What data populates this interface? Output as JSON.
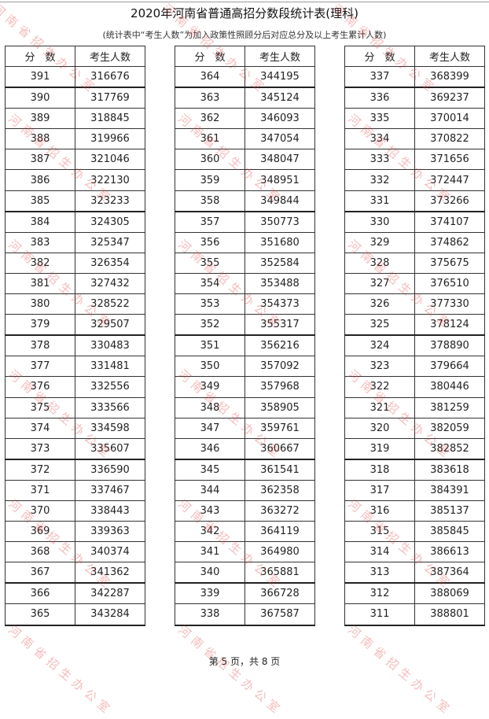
{
  "title": "2020年河南省普通高招分数段统计表(理科)",
  "subtitle": "(统计表中“考生人数”为加入政策性照顾分后对应总分及以上考生累计人数)",
  "headers": {
    "score": "分　数",
    "count": "考生人数"
  },
  "watermark": "河南省招生办公室",
  "footer": "第 5 页，共 8 页",
  "tables": [
    [
      [
        "391",
        "316676"
      ],
      [
        "390",
        "317769"
      ],
      [
        "389",
        "318845"
      ],
      [
        "388",
        "319966"
      ],
      [
        "387",
        "321046"
      ],
      [
        "386",
        "322130"
      ],
      [
        "385",
        "323233"
      ],
      [
        "384",
        "324305"
      ],
      [
        "383",
        "325347"
      ],
      [
        "382",
        "326354"
      ],
      [
        "381",
        "327432"
      ],
      [
        "380",
        "328522"
      ],
      [
        "379",
        "329507"
      ],
      [
        "378",
        "330483"
      ],
      [
        "377",
        "331481"
      ],
      [
        "376",
        "332556"
      ],
      [
        "375",
        "333566"
      ],
      [
        "374",
        "334598"
      ],
      [
        "373",
        "335607"
      ],
      [
        "372",
        "336590"
      ],
      [
        "371",
        "337467"
      ],
      [
        "370",
        "338443"
      ],
      [
        "369",
        "339363"
      ],
      [
        "368",
        "340374"
      ],
      [
        "367",
        "341362"
      ],
      [
        "366",
        "342287"
      ],
      [
        "365",
        "343284"
      ]
    ],
    [
      [
        "364",
        "344195"
      ],
      [
        "363",
        "345124"
      ],
      [
        "362",
        "346093"
      ],
      [
        "361",
        "347054"
      ],
      [
        "360",
        "348047"
      ],
      [
        "359",
        "348951"
      ],
      [
        "358",
        "349844"
      ],
      [
        "357",
        "350773"
      ],
      [
        "356",
        "351680"
      ],
      [
        "355",
        "352584"
      ],
      [
        "354",
        "353488"
      ],
      [
        "353",
        "354373"
      ],
      [
        "352",
        "355317"
      ],
      [
        "351",
        "356216"
      ],
      [
        "350",
        "357092"
      ],
      [
        "349",
        "357968"
      ],
      [
        "348",
        "358905"
      ],
      [
        "347",
        "359761"
      ],
      [
        "346",
        "360667"
      ],
      [
        "345",
        "361541"
      ],
      [
        "344",
        "362358"
      ],
      [
        "343",
        "363272"
      ],
      [
        "342",
        "364119"
      ],
      [
        "341",
        "364980"
      ],
      [
        "340",
        "365881"
      ],
      [
        "339",
        "366728"
      ],
      [
        "338",
        "367587"
      ]
    ],
    [
      [
        "337",
        "368399"
      ],
      [
        "336",
        "369237"
      ],
      [
        "335",
        "370014"
      ],
      [
        "334",
        "370822"
      ],
      [
        "333",
        "371656"
      ],
      [
        "332",
        "372447"
      ],
      [
        "331",
        "373266"
      ],
      [
        "330",
        "374107"
      ],
      [
        "329",
        "374862"
      ],
      [
        "328",
        "375675"
      ],
      [
        "327",
        "376510"
      ],
      [
        "326",
        "377330"
      ],
      [
        "325",
        "378124"
      ],
      [
        "324",
        "378890"
      ],
      [
        "323",
        "379664"
      ],
      [
        "322",
        "380446"
      ],
      [
        "321",
        "381259"
      ],
      [
        "320",
        "382059"
      ],
      [
        "319",
        "382852"
      ],
      [
        "318",
        "383618"
      ],
      [
        "317",
        "384391"
      ],
      [
        "316",
        "385137"
      ],
      [
        "315",
        "385845"
      ],
      [
        "314",
        "386613"
      ],
      [
        "313",
        "387364"
      ],
      [
        "312",
        "388069"
      ],
      [
        "311",
        "388801"
      ]
    ]
  ]
}
